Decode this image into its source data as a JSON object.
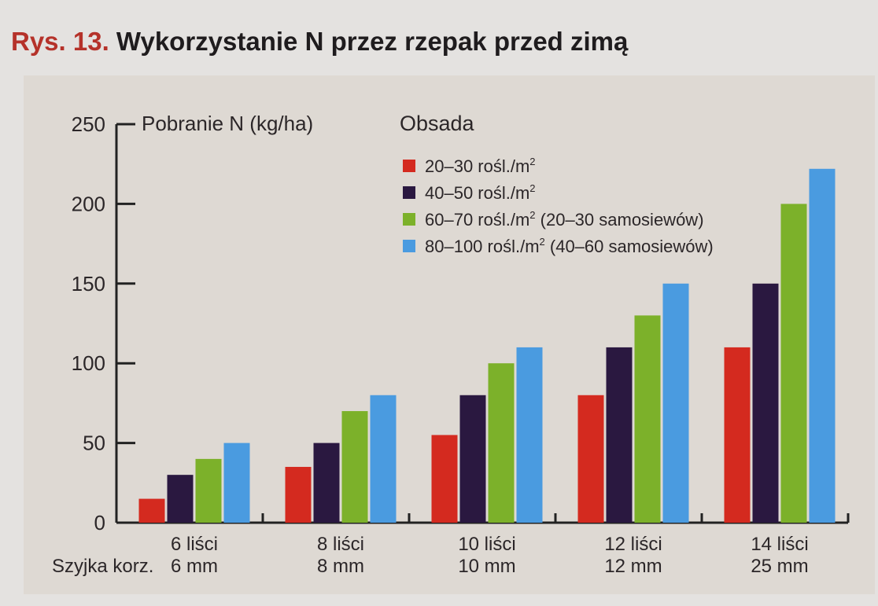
{
  "figure": {
    "number": "Rys. 13.",
    "title": "Wykorzystanie N przez rzepak przed zimą"
  },
  "chart_data": {
    "type": "bar",
    "ylabel": "Pobranie N (kg/ha)",
    "ylim": [
      0,
      250
    ],
    "yticks": [
      0,
      50,
      100,
      150,
      200,
      250
    ],
    "row_label": "Szyjka korz.",
    "categories": [
      "6 liści",
      "8 liści",
      "10 liści",
      "12 liści",
      "14 liści"
    ],
    "categories_secondary": [
      "6 mm",
      "8 mm",
      "10 mm",
      "12 mm",
      "25 mm"
    ],
    "legend_title": "Obsada",
    "grid": false,
    "legend_position": "top-center",
    "series": [
      {
        "name": "20–30 rośl./m2",
        "name_base": "20–30 rośl./m",
        "name_sup": "2",
        "name_tail": "",
        "color": "#d42a1f",
        "values": [
          15,
          35,
          55,
          80,
          110
        ]
      },
      {
        "name": "40–50 rośl./m2",
        "name_base": "40–50 rośl./m",
        "name_sup": "2",
        "name_tail": "",
        "color": "#2a1840",
        "values": [
          30,
          50,
          80,
          110,
          150
        ]
      },
      {
        "name": "60–70 rośl./m2 (20–30 samosiewów)",
        "name_base": "60–70 rośl./m",
        "name_sup": "2",
        "name_tail": " (20–30 samosiewów)",
        "color": "#7cb12a",
        "values": [
          40,
          70,
          100,
          130,
          200
        ]
      },
      {
        "name": "80–100 rośl./m2 (40–60 samosiewów)",
        "name_base": "80–100 rośl./m",
        "name_sup": "2",
        "name_tail": " (40–60 samosiewów)",
        "color": "#4a9be0",
        "values": [
          50,
          80,
          110,
          150,
          222
        ]
      }
    ]
  }
}
